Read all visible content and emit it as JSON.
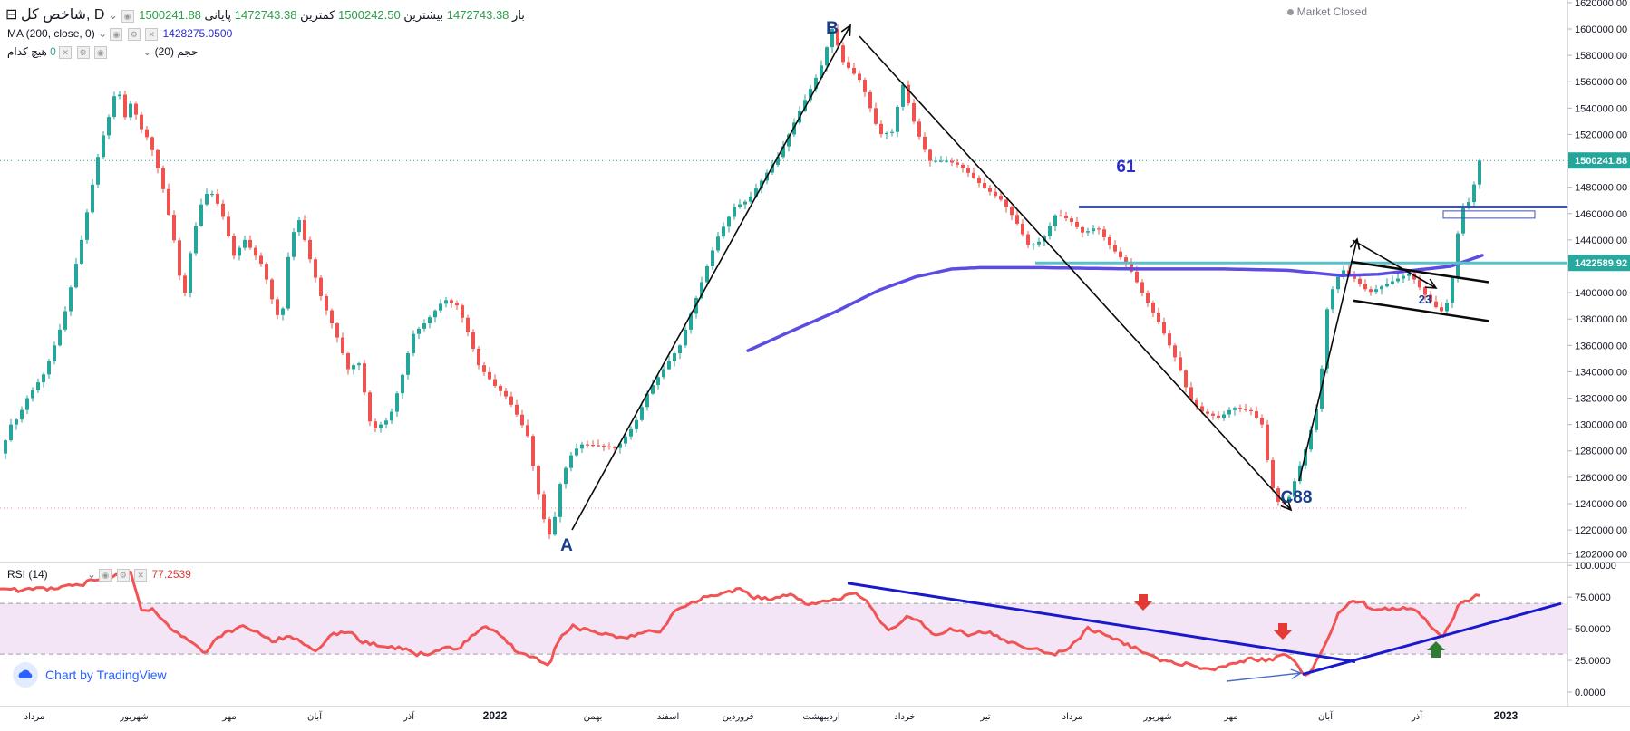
{
  "header": {
    "symbol_title": "شاخص کل, D",
    "open_label": "باز",
    "open_value": "1472743.38",
    "high_label": "بیشترین",
    "high_value": "1500242.50",
    "low_label": "کمترین",
    "low_value": "1472743.38",
    "close_label": "پایانی",
    "close_value": "1500241.88",
    "ma_label": "MA (200, close, 0)",
    "ma_value": "1428275.0500",
    "volume_label": "حجم (20)",
    "volume_value": "0",
    "volume_none": "هیچ کدام",
    "market_status": "Market Closed"
  },
  "rsi_header": {
    "label": "RSI (14)",
    "value": "77.2539"
  },
  "branding": {
    "text": "Chart by TradingView"
  },
  "colors": {
    "up": "#26a69a",
    "down": "#ef5350",
    "ma": "#5b4de3",
    "rsi": "#f05454",
    "rsi_band": "#f3e5f5",
    "price_marker": "#26a69a",
    "level_marker": "#27a9a0",
    "resistance": "#3f51b5",
    "support": "#5bc0c8",
    "trendline": "#1a237e",
    "arrow_red": "#e53935",
    "arrow_green": "#2e7d32"
  },
  "chart_data": [
    {
      "type": "candlestick",
      "title": "شاخص کل, D",
      "price_axis": {
        "ticks": [
          "1620000.00",
          "1600000.00",
          "1580000.00",
          "1560000.00",
          "1540000.00",
          "1520000.00",
          "1500000.00",
          "1480000.00",
          "1460000.00",
          "1440000.00",
          "1420000.00",
          "1400000.00",
          "1380000.00",
          "1360000.00",
          "1340000.00",
          "1320000.00",
          "1300000.00",
          "1280000.00",
          "1260000.00",
          "1240000.00",
          "1220000.00",
          "1202000.00"
        ],
        "range": [
          1196000,
          1622000
        ]
      },
      "time_axis": {
        "labels": [
          "مرداد",
          "شهریور",
          "مهر",
          "آبان",
          "آذر",
          "2022",
          "بهمن",
          "اسفند",
          "فروردین",
          "اردیبهشت",
          "خرداد",
          "تیر",
          "مرداد",
          "شهریور",
          "مهر",
          "آبان",
          "آذر",
          "2023"
        ]
      },
      "last_price": 1500241.88,
      "last_price_label": "1500241.88",
      "level_price": 1422589.92,
      "level_label": "1422589.92",
      "price_waypoints": [
        [
          1,
          1278000
        ],
        [
          6,
          1288000
        ],
        [
          12,
          1300000
        ],
        [
          20,
          1305000
        ],
        [
          30,
          1320000
        ],
        [
          50,
          1340000
        ],
        [
          70,
          1380000
        ],
        [
          90,
          1440000
        ],
        [
          110,
          1510000
        ],
        [
          125,
          1545000
        ],
        [
          130,
          1565000
        ],
        [
          135,
          1528000
        ],
        [
          145,
          1545000
        ],
        [
          155,
          1525000
        ],
        [
          165,
          1515000
        ],
        [
          178,
          1485000
        ],
        [
          195,
          1430000
        ],
        [
          202,
          1390000
        ],
        [
          212,
          1440000
        ],
        [
          225,
          1475000
        ],
        [
          235,
          1475000
        ],
        [
          245,
          1460000
        ],
        [
          258,
          1428000
        ],
        [
          270,
          1440000
        ],
        [
          290,
          1420000
        ],
        [
          300,
          1395000
        ],
        [
          310,
          1375000
        ],
        [
          320,
          1440000
        ],
        [
          330,
          1455000
        ],
        [
          340,
          1430000
        ],
        [
          355,
          1395000
        ],
        [
          370,
          1370000
        ],
        [
          385,
          1340000
        ],
        [
          395,
          1350000
        ],
        [
          410,
          1295000
        ],
        [
          430,
          1305000
        ],
        [
          445,
          1340000
        ],
        [
          455,
          1368000
        ],
        [
          470,
          1378000
        ],
        [
          490,
          1395000
        ],
        [
          505,
          1390000
        ],
        [
          515,
          1372000
        ],
        [
          528,
          1345000
        ],
        [
          545,
          1330000
        ],
        [
          560,
          1320000
        ],
        [
          572,
          1305000
        ],
        [
          583,
          1290000
        ],
        [
          590,
          1260000
        ],
        [
          601,
          1225000
        ],
        [
          608,
          1213000
        ],
        [
          618,
          1255000
        ],
        [
          628,
          1275000
        ],
        [
          640,
          1285000
        ],
        [
          660,
          1284000
        ],
        [
          680,
          1282000
        ],
        [
          700,
          1300000
        ],
        [
          715,
          1325000
        ],
        [
          730,
          1340000
        ],
        [
          750,
          1360000
        ],
        [
          770,
          1400000
        ],
        [
          790,
          1440000
        ],
        [
          810,
          1465000
        ],
        [
          825,
          1470000
        ],
        [
          845,
          1490000
        ],
        [
          860,
          1505000
        ],
        [
          880,
          1535000
        ],
        [
          905,
          1570000
        ],
        [
          918,
          1600000
        ],
        [
          930,
          1575000
        ],
        [
          950,
          1560000
        ],
        [
          970,
          1520000
        ],
        [
          985,
          1522000
        ],
        [
          995,
          1560000
        ],
        [
          1010,
          1525000
        ],
        [
          1025,
          1500000
        ],
        [
          1045,
          1500000
        ],
        [
          1060,
          1496000
        ],
        [
          1085,
          1480000
        ],
        [
          1105,
          1470000
        ],
        [
          1120,
          1455000
        ],
        [
          1135,
          1435000
        ],
        [
          1150,
          1440000
        ],
        [
          1165,
          1460000
        ],
        [
          1180,
          1455000
        ],
        [
          1195,
          1445000
        ],
        [
          1210,
          1450000
        ],
        [
          1225,
          1435000
        ],
        [
          1245,
          1420000
        ],
        [
          1260,
          1400000
        ],
        [
          1280,
          1375000
        ],
        [
          1300,
          1345000
        ],
        [
          1312,
          1320000
        ],
        [
          1325,
          1310000
        ],
        [
          1345,
          1305000
        ],
        [
          1360,
          1313000
        ],
        [
          1380,
          1310000
        ],
        [
          1392,
          1300000
        ],
        [
          1402,
          1255000
        ],
        [
          1412,
          1238000
        ],
        [
          1422,
          1245000
        ],
        [
          1432,
          1265000
        ],
        [
          1442,
          1285000
        ],
        [
          1455,
          1320000
        ],
        [
          1465,
          1395000
        ],
        [
          1480,
          1418000
        ],
        [
          1495,
          1410000
        ],
        [
          1510,
          1400000
        ],
        [
          1525,
          1405000
        ],
        [
          1540,
          1410000
        ],
        [
          1555,
          1415000
        ],
        [
          1570,
          1400000
        ],
        [
          1582,
          1390000
        ],
        [
          1592,
          1385000
        ],
        [
          1600,
          1400000
        ],
        [
          1608,
          1445000
        ],
        [
          1614,
          1465000
        ],
        [
          1622,
          1470000
        ],
        [
          1632,
          1500242
        ]
      ],
      "ma200_waypoints": [
        [
          825,
          1356000
        ],
        [
          870,
          1370000
        ],
        [
          920,
          1385000
        ],
        [
          970,
          1402000
        ],
        [
          1010,
          1412000
        ],
        [
          1050,
          1418000
        ],
        [
          1080,
          1419000
        ],
        [
          1150,
          1419000
        ],
        [
          1250,
          1418000
        ],
        [
          1350,
          1418000
        ],
        [
          1420,
          1417000
        ],
        [
          1480,
          1413000
        ],
        [
          1520,
          1414000
        ],
        [
          1560,
          1417000
        ],
        [
          1600,
          1420000
        ],
        [
          1635,
          1428275
        ]
      ],
      "annotations": [
        "A",
        "B",
        "C88",
        "61",
        "23"
      ]
    },
    {
      "type": "line",
      "title": "RSI (14)",
      "y_axis": {
        "ticks": [
          "100.0000",
          "75.0000",
          "50.0000",
          "25.0000",
          "0.0000"
        ],
        "range": [
          -10,
          103
        ]
      },
      "band": [
        30,
        70
      ],
      "last_value": 77.2539,
      "rsi_waypoints": [
        [
          0,
          83
        ],
        [
          20,
          80
        ],
        [
          40,
          82
        ],
        [
          60,
          82
        ],
        [
          75,
          85
        ],
        [
          90,
          85
        ],
        [
          110,
          90
        ],
        [
          125,
          92
        ],
        [
          140,
          95
        ],
        [
          145,
          95
        ],
        [
          155,
          65
        ],
        [
          170,
          65
        ],
        [
          190,
          50
        ],
        [
          210,
          40
        ],
        [
          225,
          30
        ],
        [
          240,
          43
        ],
        [
          265,
          52
        ],
        [
          280,
          48
        ],
        [
          300,
          40
        ],
        [
          320,
          45
        ],
        [
          335,
          38
        ],
        [
          350,
          33
        ],
        [
          365,
          45
        ],
        [
          385,
          48
        ],
        [
          400,
          40
        ],
        [
          420,
          36
        ],
        [
          440,
          35
        ],
        [
          460,
          30
        ],
        [
          475,
          30
        ],
        [
          490,
          35
        ],
        [
          505,
          33
        ],
        [
          520,
          45
        ],
        [
          535,
          52
        ],
        [
          550,
          47
        ],
        [
          570,
          32
        ],
        [
          590,
          28
        ],
        [
          605,
          20
        ],
        [
          615,
          40
        ],
        [
          630,
          52
        ],
        [
          650,
          48
        ],
        [
          670,
          45
        ],
        [
          690,
          42
        ],
        [
          710,
          47
        ],
        [
          730,
          48
        ],
        [
          745,
          65
        ],
        [
          760,
          70
        ],
        [
          780,
          75
        ],
        [
          800,
          78
        ],
        [
          815,
          82
        ],
        [
          830,
          75
        ],
        [
          850,
          73
        ],
        [
          870,
          78
        ],
        [
          890,
          70
        ],
        [
          910,
          72
        ],
        [
          930,
          75
        ],
        [
          945,
          79
        ],
        [
          955,
          72
        ],
        [
          965,
          62
        ],
        [
          980,
          48
        ],
        [
          1000,
          60
        ],
        [
          1015,
          55
        ],
        [
          1030,
          45
        ],
        [
          1050,
          50
        ],
        [
          1070,
          45
        ],
        [
          1090,
          48
        ],
        [
          1110,
          40
        ],
        [
          1130,
          36
        ],
        [
          1150,
          32
        ],
        [
          1165,
          30
        ],
        [
          1185,
          38
        ],
        [
          1200,
          50
        ],
        [
          1220,
          45
        ],
        [
          1240,
          38
        ],
        [
          1260,
          32
        ],
        [
          1280,
          25
        ],
        [
          1300,
          23
        ],
        [
          1320,
          20
        ],
        [
          1340,
          18
        ],
        [
          1360,
          22
        ],
        [
          1380,
          26
        ],
        [
          1400,
          25
        ],
        [
          1420,
          30
        ],
        [
          1437,
          15
        ],
        [
          1445,
          14
        ],
        [
          1460,
          35
        ],
        [
          1475,
          60
        ],
        [
          1490,
          72
        ],
        [
          1500,
          72
        ],
        [
          1510,
          67
        ],
        [
          1520,
          65
        ],
        [
          1540,
          66
        ],
        [
          1560,
          66
        ],
        [
          1575,
          55
        ],
        [
          1582,
          48
        ],
        [
          1592,
          45
        ],
        [
          1600,
          55
        ],
        [
          1610,
          70
        ],
        [
          1620,
          73
        ],
        [
          1632,
          77.2539
        ]
      ]
    }
  ]
}
